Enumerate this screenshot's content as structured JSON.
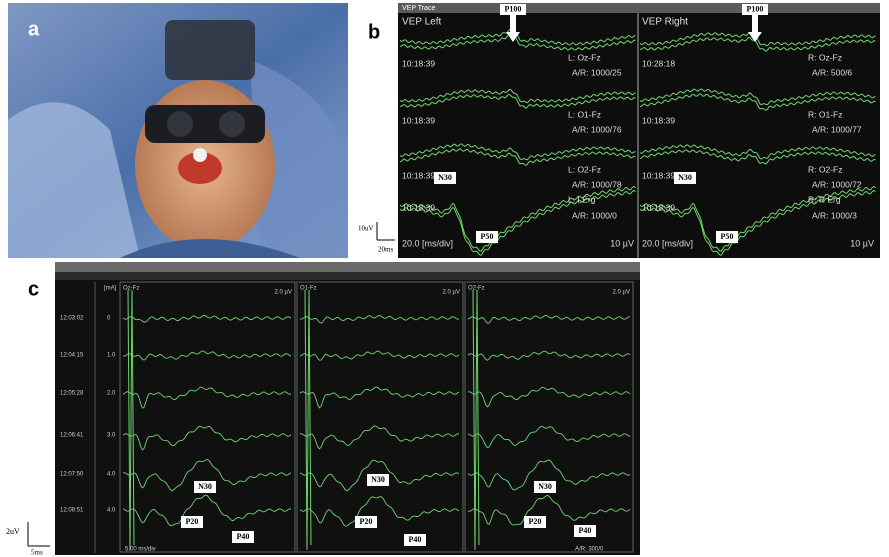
{
  "panel_labels": [
    "a",
    "b",
    "c"
  ],
  "panel_b": {
    "window_title": "VEP Trace",
    "left": {
      "title": "VEP Left",
      "peak": "P100",
      "channels": [
        {
          "time": "10:18:39",
          "lead": "L: Oz-Fz",
          "ar": "A/R: 1000/25"
        },
        {
          "time": "10:18:39",
          "lead": "L: O1-Fz",
          "ar": "A/R: 1000/76"
        },
        {
          "time": "10:18:39",
          "lead": "L: O2-Fz",
          "ar": "A/R: 1000/78"
        },
        {
          "time": "10:18:39",
          "lead": "L: LErg",
          "ar": "A/R: 1000/0"
        }
      ],
      "erg_peaks": [
        "N30",
        "P50"
      ],
      "timebase": "20.0 [ms/div]",
      "scale": "10 µV"
    },
    "right": {
      "title": "VEP Right",
      "peak": "P100",
      "channels": [
        {
          "time": "10:28:18",
          "lead": "R: Oz-Fz",
          "ar": "A/R: 500/6"
        },
        {
          "time": "10:18:39",
          "lead": "R: O1-Fz",
          "ar": "A/R: 1000/77"
        },
        {
          "time": "10:18:39",
          "lead": "R: O2-Fz",
          "ar": "A/R: 1000/72"
        },
        {
          "time": "10:18:39",
          "lead": "R: R Erg",
          "ar": "A/R: 1000/3"
        }
      ],
      "erg_peaks": [
        "N30",
        "P50"
      ],
      "timebase": "20.0 [ms/div]",
      "scale": "10 µV"
    },
    "scale_bar": {
      "amplitude": "10uV",
      "time": "20ms"
    }
  },
  "panel_c": {
    "unit_header": "[mA]",
    "rows": [
      {
        "time": "12:03:02",
        "current": "0"
      },
      {
        "time": "12:04:15",
        "current": "1.0"
      },
      {
        "time": "12:05:28",
        "current": "2.0"
      },
      {
        "time": "12:06:41",
        "current": "3.0"
      },
      {
        "time": "12:07:50",
        "current": "4.0"
      },
      {
        "time": "12:08:51",
        "current": "4.0"
      }
    ],
    "channels": [
      {
        "name": "Oz-Fz",
        "scale": "2.0 µV"
      },
      {
        "name": "O1-Fz",
        "scale": "2.0 µV"
      },
      {
        "name": "O2-Fz",
        "scale": "2.0 µV"
      }
    ],
    "peaks": [
      "N30",
      "P20",
      "P40"
    ],
    "timebase": "5.00 ms/div",
    "ar": "A/R: 300/0",
    "scale_bar": {
      "amplitude": "2uV",
      "time": "5ms"
    }
  }
}
